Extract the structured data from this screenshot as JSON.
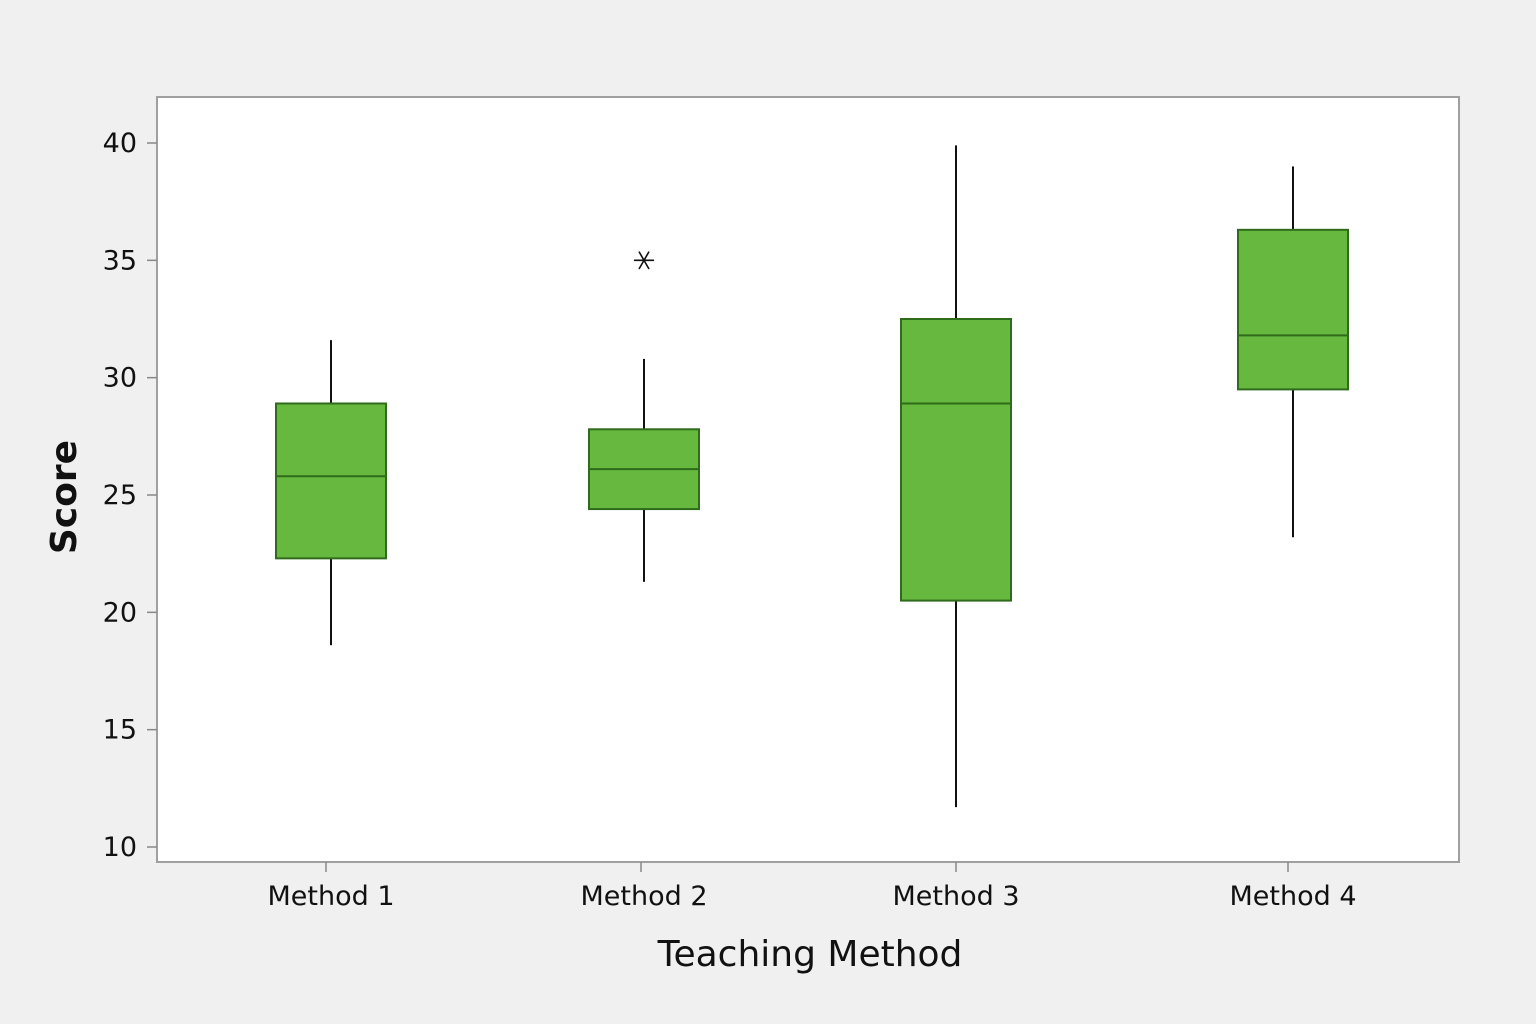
{
  "chart_data": {
    "type": "boxplot",
    "title": "",
    "xlabel": "Teaching Method",
    "ylabel": "Score",
    "ylim": [
      10,
      40
    ],
    "yticks": [
      10,
      15,
      20,
      25,
      30,
      35,
      40
    ],
    "grid": false,
    "legend": null,
    "categories": [
      "Method 1",
      "Method 2",
      "Method 3",
      "Method 4"
    ],
    "series": [
      {
        "name": "Method 1",
        "whisker_low": 18.6,
        "q1": 22.3,
        "median": 25.8,
        "q3": 28.9,
        "whisker_high": 31.6,
        "outliers": []
      },
      {
        "name": "Method 2",
        "whisker_low": 21.3,
        "q1": 24.4,
        "median": 26.1,
        "q3": 27.8,
        "whisker_high": 30.8,
        "outliers": [
          35.0
        ]
      },
      {
        "name": "Method 3",
        "whisker_low": 11.7,
        "q1": 20.5,
        "median": 28.9,
        "q3": 32.5,
        "whisker_high": 39.9,
        "outliers": []
      },
      {
        "name": "Method 4",
        "whisker_low": 23.2,
        "q1": 29.5,
        "median": 31.8,
        "q3": 36.3,
        "whisker_high": 39.0,
        "outliers": []
      }
    ],
    "colors": {
      "box_fill": "#66b83f",
      "box_edge": "#2e6b1a",
      "whisker": "#111111",
      "plot_bg": "#ffffff",
      "page_bg": "#f0f0f0",
      "frame": "#a0a0a0"
    }
  }
}
